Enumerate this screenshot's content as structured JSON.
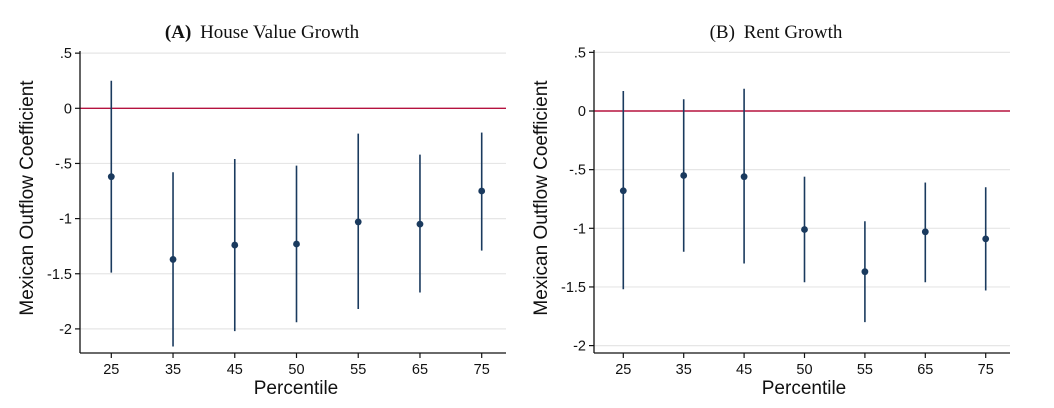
{
  "chart_data": [
    {
      "type": "scatter",
      "panel_label": "(A)",
      "title": "House Value Growth",
      "xlabel": "Percentile",
      "ylabel": "Mexican Outflow Coefficient",
      "categories": [
        "25",
        "35",
        "45",
        "50",
        "55",
        "65",
        "75"
      ],
      "series": [
        {
          "name": "Coefficient",
          "values": [
            -0.62,
            -1.37,
            -1.24,
            -1.23,
            -1.03,
            -1.05,
            -0.75
          ],
          "ci_upper": [
            0.25,
            -0.58,
            -0.46,
            -0.52,
            -0.23,
            -0.42,
            -0.22
          ],
          "ci_lower": [
            -1.49,
            -2.16,
            -2.02,
            -1.94,
            -1.82,
            -1.67,
            -1.29
          ]
        }
      ],
      "yticks": [
        0.5,
        0,
        -0.5,
        -1,
        -1.5,
        -2
      ],
      "ytick_labels": [
        ".5",
        "0",
        "-.5",
        "-1",
        "-1.5",
        "-2"
      ],
      "ylim": [
        -2.22,
        0.52
      ],
      "reference_line": 0,
      "grid": true
    },
    {
      "type": "scatter",
      "panel_label": "(B)",
      "title": "Rent Growth",
      "xlabel": "Percentile",
      "ylabel": "Mexican Outflow Coefficient",
      "categories": [
        "25",
        "35",
        "45",
        "50",
        "55",
        "65",
        "75"
      ],
      "series": [
        {
          "name": "Coefficient",
          "values": [
            -0.68,
            -0.55,
            -0.56,
            -1.01,
            -1.37,
            -1.03,
            -1.09
          ],
          "ci_upper": [
            0.17,
            0.1,
            0.19,
            -0.56,
            -0.94,
            -0.61,
            -0.65
          ],
          "ci_lower": [
            -1.52,
            -1.2,
            -1.3,
            -1.46,
            -1.8,
            -1.46,
            -1.53
          ]
        }
      ],
      "yticks": [
        0.5,
        0,
        -0.5,
        -1,
        -1.5,
        -2
      ],
      "ytick_labels": [
        ".5",
        "0",
        "-.5",
        "-1",
        "-1.5",
        "-2"
      ],
      "ylim": [
        -2.07,
        0.52
      ],
      "reference_line": 0,
      "grid": true
    }
  ],
  "colors": {
    "marker": "#1a3a5e",
    "reference_line": "#b5123f"
  }
}
